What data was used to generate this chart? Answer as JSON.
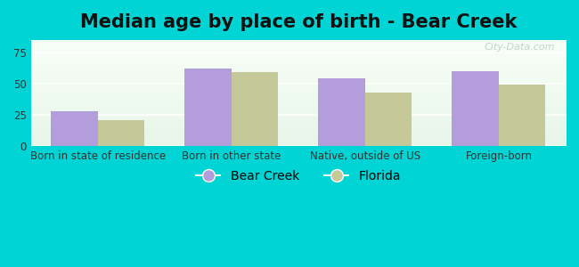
{
  "title": "Median age by place of birth - Bear Creek",
  "categories": [
    "Born in state of residence",
    "Born in other state",
    "Native, outside of US",
    "Foreign-born"
  ],
  "bear_creek_values": [
    28,
    62,
    54,
    60
  ],
  "florida_values": [
    21,
    59,
    43,
    49
  ],
  "bear_creek_color": "#b39ddb",
  "florida_color": "#c5c99a",
  "ylim": [
    0,
    85
  ],
  "yticks": [
    0,
    25,
    50,
    75
  ],
  "background_color": "#00d4d4",
  "bar_width": 0.35,
  "title_fontsize": 15,
  "tick_fontsize": 8.5,
  "legend_fontsize": 10,
  "watermark": "City-Data.com"
}
